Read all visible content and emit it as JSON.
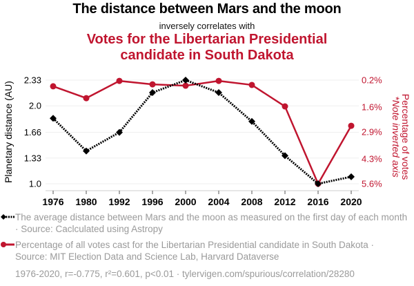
{
  "header": {
    "title": "The distance between Mars and the moon",
    "subtitle": "inversely correlates with",
    "title2_line1": "Votes for the Libertarian Presidential",
    "title2_line2": "candidate in South Dakota"
  },
  "chart_data": {
    "type": "line",
    "title": "The distance between Mars and the moon inversely correlates with Votes for the Libertarian Presidential candidate in South Dakota",
    "x": [
      "1976",
      "1980",
      "1992",
      "1996",
      "2000",
      "2004",
      "2008",
      "2012",
      "2016",
      "2020"
    ],
    "xlabel": "",
    "ylabel_left": "Planetary distance (AU)",
    "ylabel_right": "Percentage of votes",
    "ylabel_right_note": "*Note inverted axis",
    "left_ticks": [
      "2.33",
      "2.0",
      "1.66",
      "1.33",
      "1.0"
    ],
    "left_tick_values": [
      2.33,
      2.0,
      1.66,
      1.33,
      1.0
    ],
    "right_ticks": [
      "0.2%",
      "1.6%",
      "2.9%",
      "4.3%",
      "5.6%"
    ],
    "right_tick_values": [
      0.2,
      1.6,
      2.9,
      4.3,
      5.6
    ],
    "ylim_left": [
      1.0,
      2.33
    ],
    "ylim_right_inverted": [
      0.2,
      5.6
    ],
    "grid": true,
    "series": [
      {
        "name": "The average distance between Mars and the moon",
        "axis": "left",
        "color": "#000000",
        "style": "dotted",
        "marker": "diamond",
        "values": [
          1.84,
          1.42,
          1.66,
          2.17,
          2.33,
          2.17,
          1.8,
          1.36,
          1.0,
          1.09
        ]
      },
      {
        "name": "Percentage of all votes cast for the Libertarian Presidential candidate in South Dakota",
        "axis": "right",
        "color": "#c0152f",
        "style": "solid",
        "marker": "circle",
        "values": [
          0.52,
          1.14,
          0.24,
          0.42,
          0.49,
          0.24,
          0.45,
          1.57,
          5.6,
          2.58
        ]
      }
    ]
  },
  "legend": {
    "item1": "The average distance between Mars and the moon as measured on the first day of each month · Source: Caclculated using Astropy",
    "item2": "Percentage of all votes cast for the Libertarian Presidential candidate in South Dakota · Source: MIT Election Data and Science Lab, Harvard Dataverse"
  },
  "footer": "1976-2020, r=-0.775, r²=0.601, p<0.01 · tylervigen.com/spurious/correlation/28280"
}
